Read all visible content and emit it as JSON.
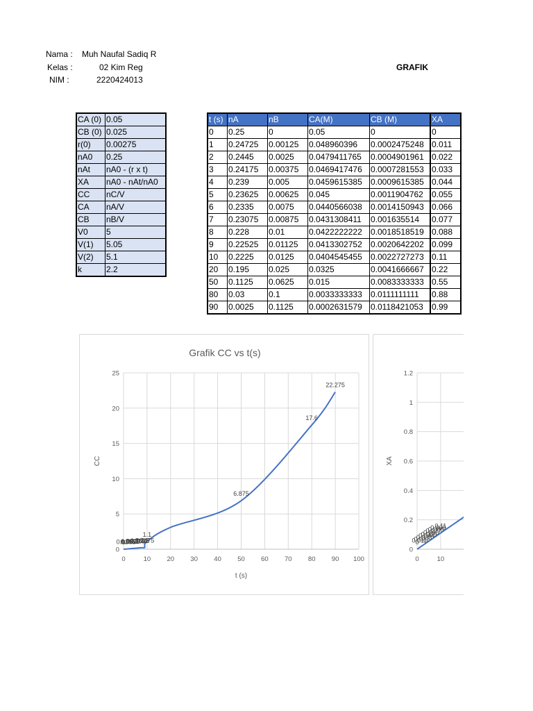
{
  "header": {
    "nama_label": "Nama :",
    "nama_value": "Muh Naufal Sadiq R",
    "kelas_label": "Kelas :",
    "kelas_value": "02 Kim Reg",
    "nim_label": "NIM :",
    "nim_value": "2220424013",
    "grafik_title": "GRAFIK"
  },
  "parameters": [
    {
      "key": "CA (0)",
      "value": "0.05"
    },
    {
      "key": "CB (0)",
      "value": "0.025"
    },
    {
      "key": "r(0)",
      "value": "0.00275"
    },
    {
      "key": "nA0",
      "value": "0.25"
    },
    {
      "key": "nAt",
      "value": "nA0 - (r x t)"
    },
    {
      "key": "XA",
      "value": "nA0 - nAt/nA0"
    },
    {
      "key": "CC",
      "value": "nC/V"
    },
    {
      "key": "CA",
      "value": "nA/V"
    },
    {
      "key": "CB",
      "value": "nB/V"
    },
    {
      "key": "V0",
      "value": "5"
    },
    {
      "key": "V(1)",
      "value": "5.05"
    },
    {
      "key": "V(2)",
      "value": "5.1"
    },
    {
      "key": "k",
      "value": "2.2"
    }
  ],
  "data_table": {
    "headers": [
      "t (s)",
      "nA",
      "nB",
      "CA(M)",
      "CB (M)",
      "XA"
    ],
    "rows": [
      [
        "0",
        "0.25",
        "0",
        "0.05",
        "0",
        "0"
      ],
      [
        "1",
        "0.24725",
        "0.00125",
        "0.048960396",
        "0.0002475248",
        "0.011"
      ],
      [
        "2",
        "0.2445",
        "0.0025",
        "0.0479411765",
        "0.0004901961",
        "0.022"
      ],
      [
        "3",
        "0.24175",
        "0.00375",
        "0.0469417476",
        "0.0007281553",
        "0.033"
      ],
      [
        "4",
        "0.239",
        "0.005",
        "0.0459615385",
        "0.0009615385",
        "0.044"
      ],
      [
        "5",
        "0.23625",
        "0.00625",
        "0.045",
        "0.0011904762",
        "0.055"
      ],
      [
        "6",
        "0.2335",
        "0.0075",
        "0.0440566038",
        "0.0014150943",
        "0.066"
      ],
      [
        "7",
        "0.23075",
        "0.00875",
        "0.0431308411",
        "0.001635514",
        "0.077"
      ],
      [
        "8",
        "0.228",
        "0.01",
        "0.0422222222",
        "0.0018518519",
        "0.088"
      ],
      [
        "9",
        "0.22525",
        "0.01125",
        "0.0413302752",
        "0.0020642202",
        "0.099"
      ],
      [
        "10",
        "0.2225",
        "0.0125",
        "0.0404545455",
        "0.0022727273",
        "0.11"
      ],
      [
        "20",
        "0.195",
        "0.025",
        "0.0325",
        "0.0041666667",
        "0.22"
      ],
      [
        "50",
        "0.1125",
        "0.0625",
        "0.015",
        "0.0083333333",
        "0.55"
      ],
      [
        "80",
        "0.03",
        "0.1",
        "0.0033333333",
        "0.0111111111",
        "0.88"
      ],
      [
        "90",
        "0.0025",
        "0.1125",
        "0.0002631579",
        "0.0118421053",
        "0.99"
      ]
    ]
  },
  "chart_data": [
    {
      "type": "line",
      "title": "Grafik CC vs t(s)",
      "xlabel": "t (s)",
      "ylabel": "CC",
      "xlim": [
        0,
        100
      ],
      "ylim": [
        0,
        25
      ],
      "xticks": [
        "0",
        "10",
        "20",
        "30",
        "40",
        "50",
        "60",
        "70",
        "80",
        "90",
        "100"
      ],
      "yticks": [
        "0",
        "5",
        "10",
        "15",
        "20",
        "25"
      ],
      "grid": true,
      "series_color": "#4472c4",
      "x": [
        0,
        1,
        2,
        3,
        4,
        5,
        6,
        7,
        8,
        9,
        10,
        20,
        50,
        80,
        90
      ],
      "values": [
        0,
        0.0275,
        0.055,
        0.0825,
        0.11,
        0.1375,
        0.165,
        0.1925,
        0.22,
        0.2475,
        1.1,
        3.1,
        6.875,
        17.6,
        22.275
      ],
      "data_labels": [
        "0",
        "0.0275",
        "0.055",
        "0.0825",
        "0.11",
        "0.1375",
        "0.165",
        "0.1925",
        "0.22",
        "0.2475",
        "1.1",
        "",
        "6.875",
        "17.6",
        "22.275"
      ]
    },
    {
      "type": "line",
      "title": "",
      "xlabel": "",
      "ylabel": "XA",
      "xlim": [
        0,
        100
      ],
      "ylim": [
        0,
        1.2
      ],
      "xticks": [
        "0",
        "10"
      ],
      "yticks": [
        "0",
        "0.2",
        "0.4",
        "0.6",
        "0.8",
        "1",
        "1.2"
      ],
      "grid": true,
      "series_color": "#4472c4",
      "x": [
        0,
        1,
        2,
        3,
        4,
        5,
        6,
        7,
        8,
        9,
        10,
        20
      ],
      "values": [
        0,
        0.011,
        0.022,
        0.033,
        0.044,
        0.055,
        0.066,
        0.077,
        0.088,
        0.099,
        0.11,
        0.22
      ],
      "data_labels": [
        "0",
        "0.011",
        "0.022",
        "0.033",
        "0.044",
        "0.055",
        "0.066",
        "0.077",
        "0.088",
        "0.099",
        "0.11",
        ""
      ]
    }
  ]
}
